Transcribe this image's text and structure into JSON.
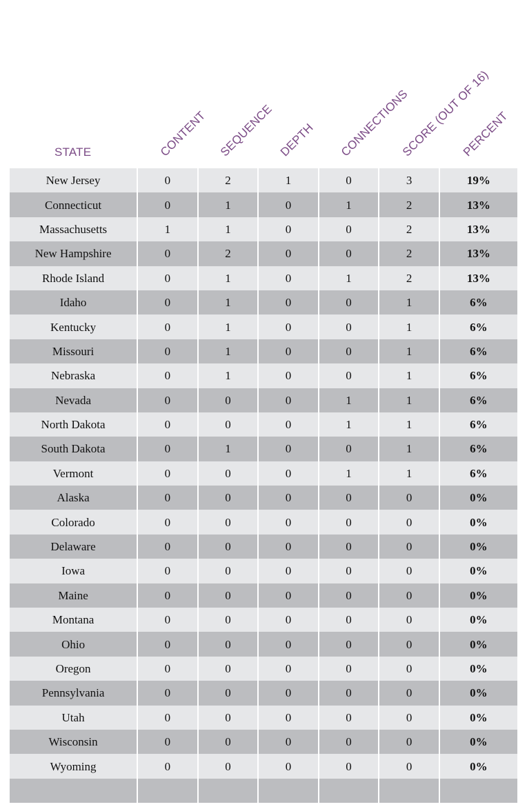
{
  "table": {
    "headers": {
      "state": "STATE",
      "content": "CONTENT",
      "sequence": "SEQUENCE",
      "depth": "DEPTH",
      "connections": "CONNECTIONS",
      "score": "SCORE (OUT OF 16)",
      "percent": "PERCENT"
    },
    "rows": [
      {
        "state": "New Jersey",
        "content": "0",
        "sequence": "2",
        "depth": "1",
        "connections": "0",
        "score": "3",
        "percent": "19%"
      },
      {
        "state": "Connecticut",
        "content": "0",
        "sequence": "1",
        "depth": "0",
        "connections": "1",
        "score": "2",
        "percent": "13%"
      },
      {
        "state": "Massachusetts",
        "content": "1",
        "sequence": "1",
        "depth": "0",
        "connections": "0",
        "score": "2",
        "percent": "13%"
      },
      {
        "state": "New Hampshire",
        "content": "0",
        "sequence": "2",
        "depth": "0",
        "connections": "0",
        "score": "2",
        "percent": "13%"
      },
      {
        "state": "Rhode Island",
        "content": "0",
        "sequence": "1",
        "depth": "0",
        "connections": "1",
        "score": "2",
        "percent": "13%"
      },
      {
        "state": "Idaho",
        "content": "0",
        "sequence": "1",
        "depth": "0",
        "connections": "0",
        "score": "1",
        "percent": "6%"
      },
      {
        "state": "Kentucky",
        "content": "0",
        "sequence": "1",
        "depth": "0",
        "connections": "0",
        "score": "1",
        "percent": "6%"
      },
      {
        "state": "Missouri",
        "content": "0",
        "sequence": "1",
        "depth": "0",
        "connections": "0",
        "score": "1",
        "percent": "6%"
      },
      {
        "state": "Nebraska",
        "content": "0",
        "sequence": "1",
        "depth": "0",
        "connections": "0",
        "score": "1",
        "percent": "6%"
      },
      {
        "state": "Nevada",
        "content": "0",
        "sequence": "0",
        "depth": "0",
        "connections": "1",
        "score": "1",
        "percent": "6%"
      },
      {
        "state": "North Dakota",
        "content": "0",
        "sequence": "0",
        "depth": "0",
        "connections": "1",
        "score": "1",
        "percent": "6%"
      },
      {
        "state": "South Dakota",
        "content": "0",
        "sequence": "1",
        "depth": "0",
        "connections": "0",
        "score": "1",
        "percent": "6%"
      },
      {
        "state": "Vermont",
        "content": "0",
        "sequence": "0",
        "depth": "0",
        "connections": "1",
        "score": "1",
        "percent": "6%"
      },
      {
        "state": "Alaska",
        "content": "0",
        "sequence": "0",
        "depth": "0",
        "connections": "0",
        "score": "0",
        "percent": "0%"
      },
      {
        "state": "Colorado",
        "content": "0",
        "sequence": "0",
        "depth": "0",
        "connections": "0",
        "score": "0",
        "percent": "0%"
      },
      {
        "state": "Delaware",
        "content": "0",
        "sequence": "0",
        "depth": "0",
        "connections": "0",
        "score": "0",
        "percent": "0%"
      },
      {
        "state": "Iowa",
        "content": "0",
        "sequence": "0",
        "depth": "0",
        "connections": "0",
        "score": "0",
        "percent": "0%"
      },
      {
        "state": "Maine",
        "content": "0",
        "sequence": "0",
        "depth": "0",
        "connections": "0",
        "score": "0",
        "percent": "0%"
      },
      {
        "state": "Montana",
        "content": "0",
        "sequence": "0",
        "depth": "0",
        "connections": "0",
        "score": "0",
        "percent": "0%"
      },
      {
        "state": "Ohio",
        "content": "0",
        "sequence": "0",
        "depth": "0",
        "connections": "0",
        "score": "0",
        "percent": "0%"
      },
      {
        "state": "Oregon",
        "content": "0",
        "sequence": "0",
        "depth": "0",
        "connections": "0",
        "score": "0",
        "percent": "0%"
      },
      {
        "state": "Pennsylvania",
        "content": "0",
        "sequence": "0",
        "depth": "0",
        "connections": "0",
        "score": "0",
        "percent": "0%"
      },
      {
        "state": "Utah",
        "content": "0",
        "sequence": "0",
        "depth": "0",
        "connections": "0",
        "score": "0",
        "percent": "0%"
      },
      {
        "state": "Wisconsin",
        "content": "0",
        "sequence": "0",
        "depth": "0",
        "connections": "0",
        "score": "0",
        "percent": "0%"
      },
      {
        "state": "Wyoming",
        "content": "0",
        "sequence": "0",
        "depth": "0",
        "connections": "0",
        "score": "0",
        "percent": "0%"
      },
      {
        "state": "",
        "content": "",
        "sequence": "",
        "depth": "",
        "connections": "",
        "score": "",
        "percent": ""
      }
    ]
  },
  "colors": {
    "header_text": "#7b4b86",
    "row_light": "#e6e7e9",
    "row_dark": "#bcbdc0"
  }
}
